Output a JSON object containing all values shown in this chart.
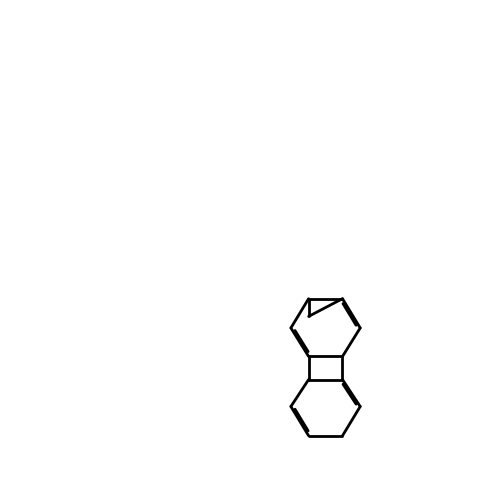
{
  "bg_color": "#ffffff",
  "bond_color": "#000000",
  "N_color": "#0000ff",
  "Cl_color": "#00cc00",
  "lw": 2.0,
  "font_size": 13,
  "font_size_small": 11
}
